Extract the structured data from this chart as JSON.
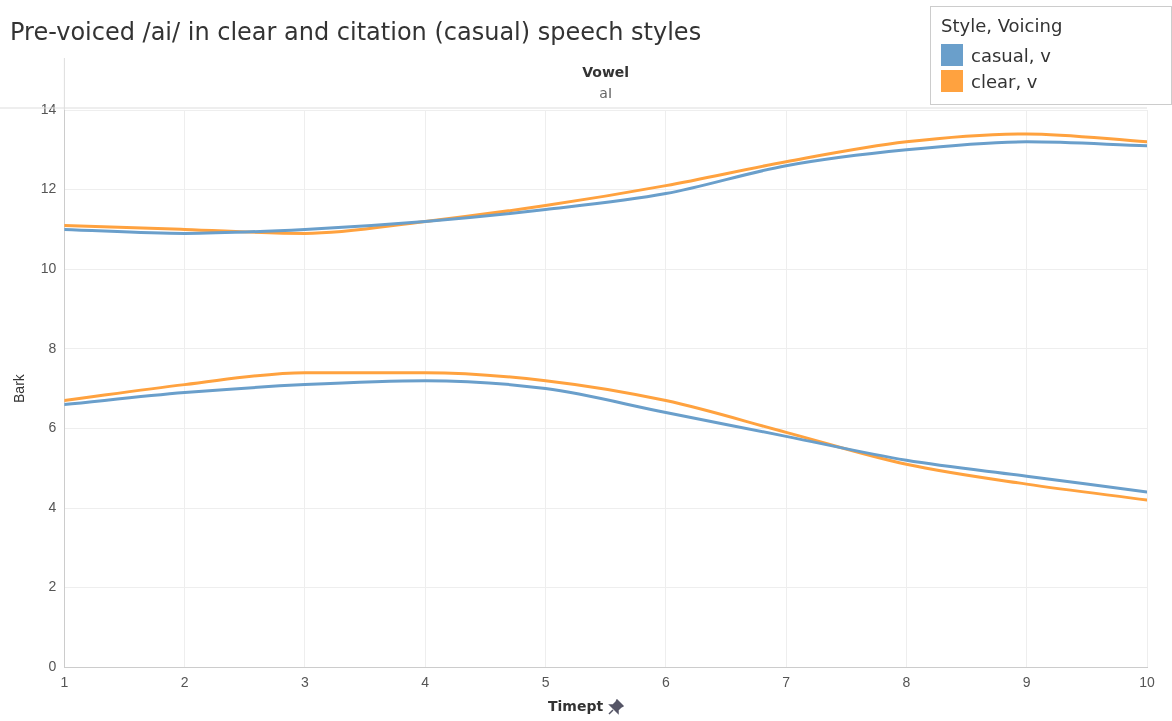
{
  "chart_data": {
    "type": "line",
    "title": "Pre-voiced /ai/ in clear and citation (casual) speech styles",
    "annotations": [
      "Vowel",
      "aI"
    ],
    "xlabel": "Timept",
    "ylabel": "Bark",
    "legend_title": "Style, Voicing",
    "legend": "top right",
    "grid": true,
    "marker": "none",
    "line_style": "solid",
    "x": [
      1,
      2,
      3,
      4,
      5,
      6,
      7,
      8,
      9,
      10
    ],
    "xlim": [
      1,
      10
    ],
    "xticks": [
      1,
      2,
      3,
      4,
      5,
      6,
      7,
      8,
      9,
      10
    ],
    "ylim": [
      0,
      14
    ],
    "yticks": [
      0,
      2,
      4,
      6,
      8,
      10,
      12,
      14
    ],
    "series": [
      {
        "name": "casual, v",
        "color": "#6a9fcb",
        "values": [
          11.0,
          10.9,
          11.0,
          11.2,
          11.5,
          11.9,
          12.6,
          13.0,
          13.2,
          13.1
        ]
      },
      {
        "name": "clear, v",
        "color": "#ffa23f",
        "values": [
          11.1,
          11.0,
          10.9,
          11.2,
          11.6,
          12.1,
          12.7,
          13.2,
          13.4,
          13.2
        ]
      },
      {
        "color": "#6a9fcb",
        "values": [
          6.6,
          6.9,
          7.1,
          7.2,
          7.0,
          6.4,
          5.8,
          5.2,
          4.8,
          4.4
        ]
      },
      {
        "color": "#ffa23f",
        "values": [
          6.7,
          7.1,
          7.4,
          7.4,
          7.2,
          6.7,
          5.9,
          5.1,
          4.6,
          4.2
        ]
      }
    ]
  }
}
